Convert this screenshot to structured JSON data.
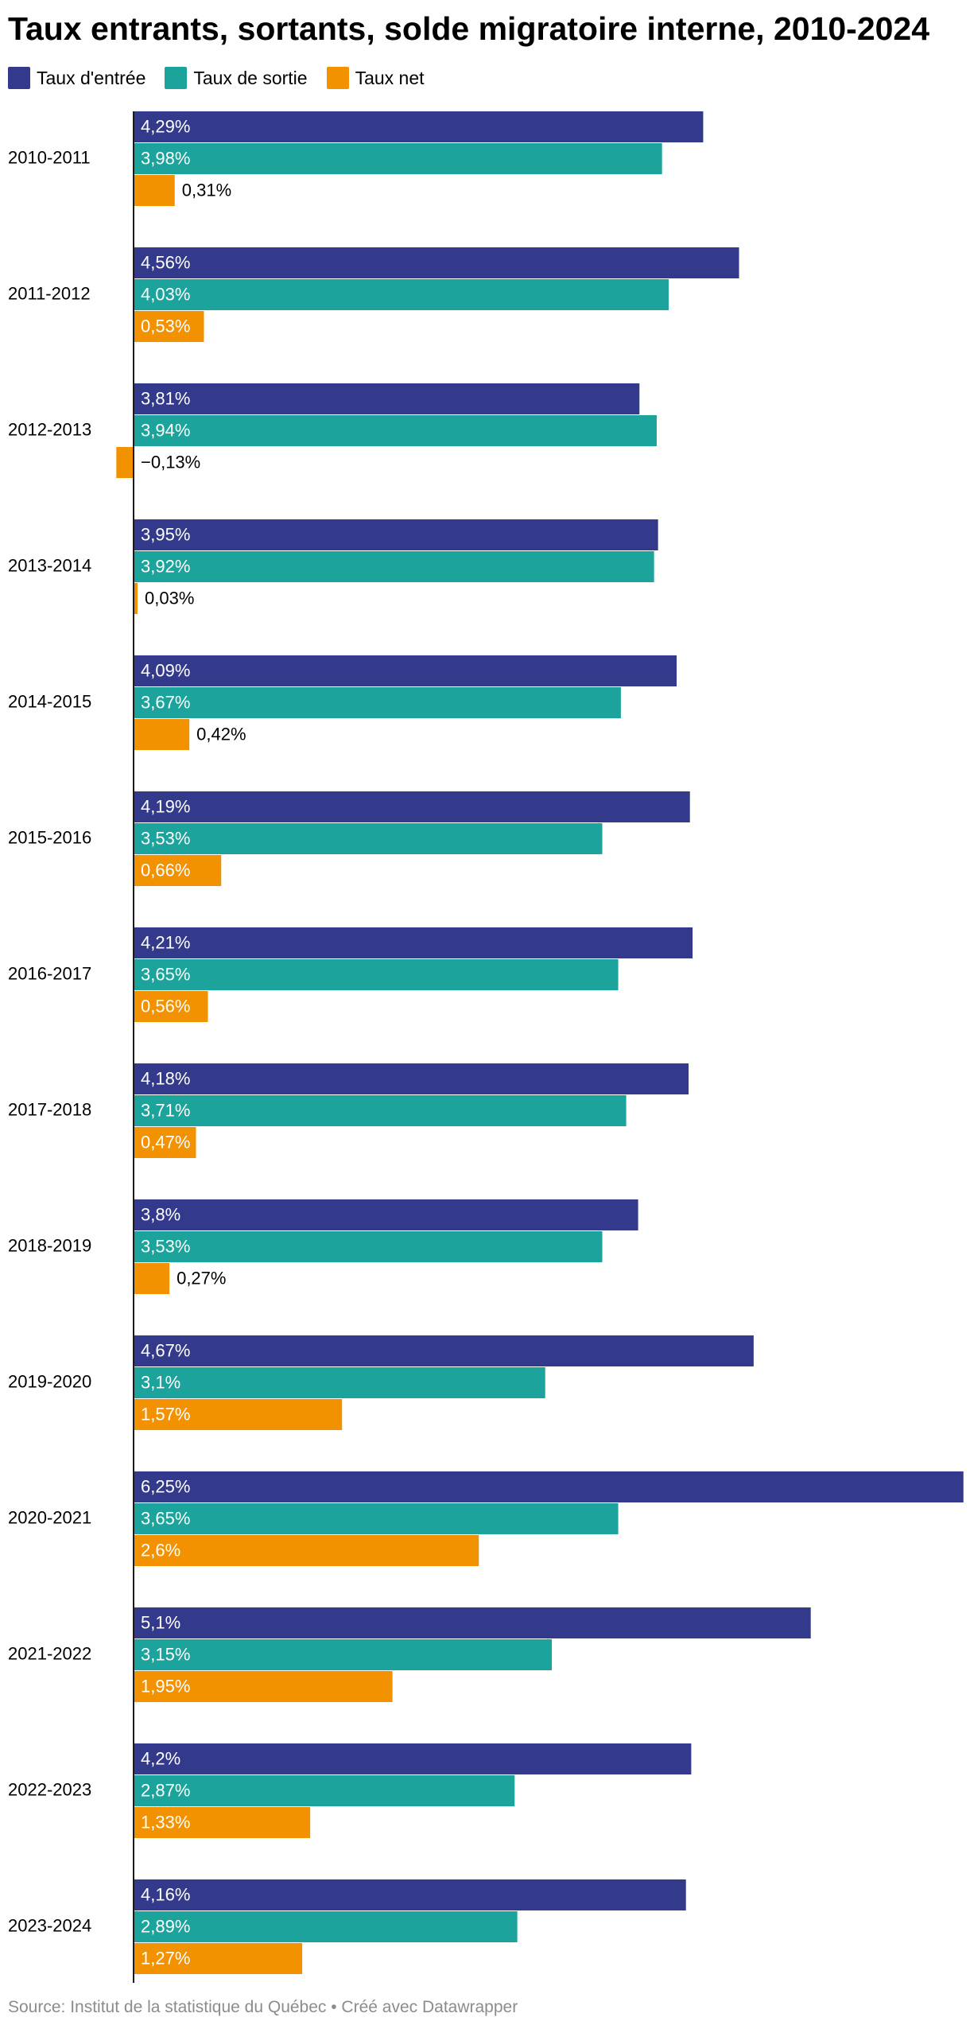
{
  "chart_data": {
    "type": "bar",
    "orientation": "horizontal",
    "title": "Taux entrants, sortants, solde migratoire interne, 2010-2024",
    "source": "Source: Institut de la statistique du Québec • Créé avec Datawrapper",
    "categories": [
      "2010-2011",
      "2011-2012",
      "2012-2013",
      "2013-2014",
      "2014-2015",
      "2015-2016",
      "2016-2017",
      "2017-2018",
      "2018-2019",
      "2019-2020",
      "2020-2021",
      "2021-2022",
      "2022-2023",
      "2023-2024"
    ],
    "series": [
      {
        "name": "Taux d'entrée",
        "color": "#333a8c",
        "values": [
          4.29,
          4.56,
          3.81,
          3.95,
          4.09,
          4.19,
          4.21,
          4.18,
          3.8,
          4.67,
          6.25,
          5.1,
          4.2,
          4.16
        ],
        "labels": [
          "4,29%",
          "4,56%",
          "3,81%",
          "3,95%",
          "4,09%",
          "4,19%",
          "4,21%",
          "4,18%",
          "3,8%",
          "4,67%",
          "6,25%",
          "5,1%",
          "4,2%",
          "4,16%"
        ]
      },
      {
        "name": "Taux de sortie",
        "color": "#1ba39c",
        "values": [
          3.98,
          4.03,
          3.94,
          3.92,
          3.67,
          3.53,
          3.65,
          3.71,
          3.53,
          3.1,
          3.65,
          3.15,
          2.87,
          2.89
        ],
        "labels": [
          "3,98%",
          "4,03%",
          "3,94%",
          "3,92%",
          "3,67%",
          "3,53%",
          "3,65%",
          "3,71%",
          "3,53%",
          "3,1%",
          "3,65%",
          "3,15%",
          "2,87%",
          "2,89%"
        ]
      },
      {
        "name": "Taux net",
        "color": "#f39200",
        "values": [
          0.31,
          0.53,
          -0.13,
          0.03,
          0.42,
          0.66,
          0.56,
          0.47,
          0.27,
          1.57,
          2.6,
          1.95,
          1.33,
          1.27
        ],
        "labels": [
          "0,31%",
          "0,53%",
          "−0,13%",
          "0,03%",
          "0,42%",
          "0,66%",
          "0,56%",
          "0,47%",
          "0,27%",
          "1,57%",
          "2,6%",
          "1,95%",
          "1,33%",
          "1,27%"
        ]
      }
    ],
    "xlim": [
      -0.13,
      6.25
    ],
    "grid": false,
    "legend_position": "top-left"
  }
}
